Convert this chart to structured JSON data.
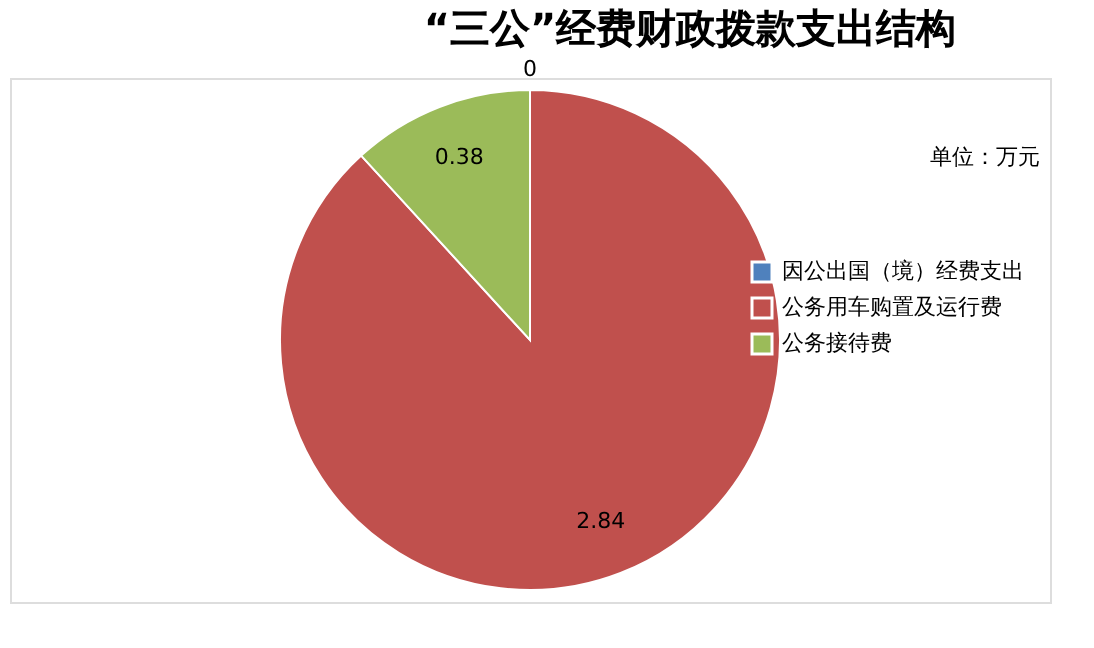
{
  "chart_data": {
    "type": "pie",
    "title": "“三公”经费财政拨款支出结构",
    "categories": [
      "因公出国（境）经费支出",
      "公务用车购置及运行费",
      "公务接待费"
    ],
    "values": [
      0,
      2.84,
      0.38
    ],
    "colors": [
      "#4f81bd",
      "#c0504d",
      "#9bbb59"
    ],
    "annotations": [
      "单位：万元"
    ],
    "value_labels": [
      "0",
      "2.84",
      "0.38"
    ],
    "legend": "right"
  }
}
